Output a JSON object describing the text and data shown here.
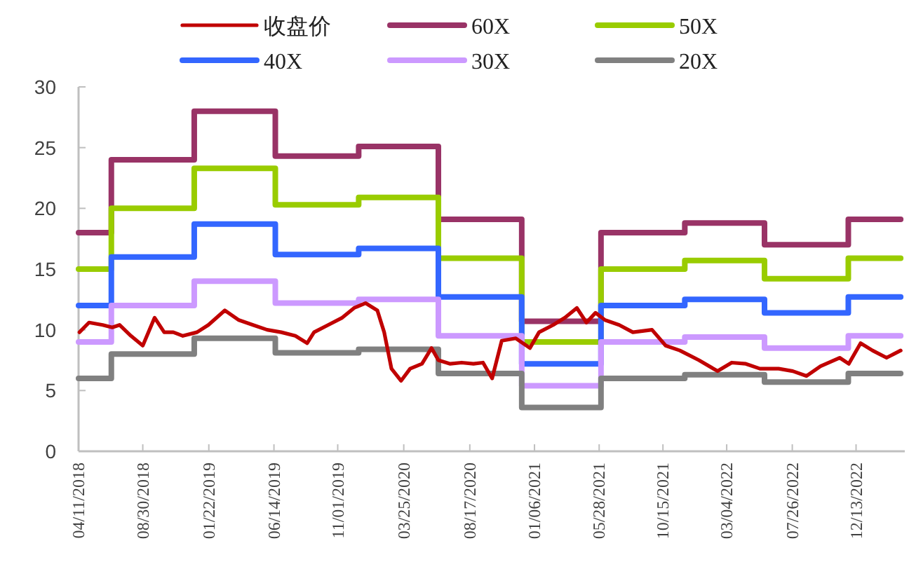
{
  "chart_data": {
    "type": "line",
    "legend": "top",
    "xlim": [
      "2018-04-11",
      "2023-03-30"
    ],
    "ylim": [
      0,
      30
    ],
    "yticks": [
      0,
      5,
      10,
      15,
      20,
      25,
      30
    ],
    "xticks": [
      {
        "value": "2018-04-11",
        "label": "04/11/2018"
      },
      {
        "value": "2018-08-30",
        "label": "08/30/2018"
      },
      {
        "value": "2019-01-22",
        "label": "01/22/2019"
      },
      {
        "value": "2019-06-14",
        "label": "06/14/2019"
      },
      {
        "value": "2019-11-01",
        "label": "11/01/2019"
      },
      {
        "value": "2020-03-25",
        "label": "03/25/2020"
      },
      {
        "value": "2020-08-17",
        "label": "08/17/2020"
      },
      {
        "value": "2021-01-06",
        "label": "01/06/2021"
      },
      {
        "value": "2021-05-28",
        "label": "05/28/2021"
      },
      {
        "value": "2021-10-15",
        "label": "10/15/2021"
      },
      {
        "value": "2022-03-04",
        "label": "03/04/2022"
      },
      {
        "value": "2022-07-26",
        "label": "07/26/2022"
      },
      {
        "value": "2022-12-13",
        "label": "12/13/2022"
      }
    ],
    "series": [
      {
        "name": "收盘价",
        "color": "#c00000",
        "x": [
          "2018-04-13",
          "2018-05-04",
          "2018-06-03",
          "2018-06-24",
          "2018-07-10",
          "2018-08-04",
          "2018-08-30",
          "2018-09-25",
          "2018-10-16",
          "2018-11-05",
          "2018-11-26",
          "2018-12-27",
          "2019-01-21",
          "2019-02-26",
          "2019-03-29",
          "2019-04-29",
          "2019-05-30",
          "2019-06-30",
          "2019-07-31",
          "2019-08-26",
          "2019-09-10",
          "2019-10-11",
          "2019-11-11",
          "2019-12-07",
          "2020-01-01",
          "2020-01-27",
          "2020-02-11",
          "2020-02-27",
          "2020-03-19",
          "2020-04-08",
          "2020-05-04",
          "2020-05-25",
          "2020-06-09",
          "2020-07-05",
          "2020-07-30",
          "2020-08-25",
          "2020-09-15",
          "2020-10-05",
          "2020-10-26",
          "2020-11-26",
          "2020-12-27",
          "2021-01-16",
          "2021-02-16",
          "2021-03-14",
          "2021-04-09",
          "2021-04-30",
          "2021-05-20",
          "2021-06-10",
          "2021-07-11",
          "2021-08-10",
          "2021-09-21",
          "2021-10-21",
          "2021-11-21",
          "2022-01-02",
          "2022-02-12",
          "2022-03-15",
          "2022-04-15",
          "2022-05-16",
          "2022-06-26",
          "2022-07-27",
          "2022-08-26",
          "2022-09-26",
          "2022-11-07",
          "2022-11-27",
          "2022-12-23",
          "2023-01-18",
          "2023-02-18",
          "2023-03-21"
        ],
        "values": [
          9.8,
          10.6,
          10.4,
          10.2,
          10.4,
          9.5,
          8.7,
          11.0,
          9.8,
          9.8,
          9.5,
          9.8,
          10.4,
          11.6,
          10.8,
          10.4,
          10.0,
          9.8,
          9.5,
          8.9,
          9.8,
          10.4,
          11.0,
          11.8,
          12.2,
          11.6,
          9.8,
          6.8,
          5.8,
          6.8,
          7.2,
          8.5,
          7.5,
          7.2,
          7.3,
          7.2,
          7.3,
          6.0,
          9.1,
          9.3,
          8.5,
          9.8,
          10.4,
          11.0,
          11.8,
          10.6,
          11.4,
          10.8,
          10.4,
          9.8,
          10.0,
          8.7,
          8.3,
          7.5,
          6.6,
          7.3,
          7.2,
          6.8,
          6.8,
          6.6,
          6.2,
          7.0,
          7.7,
          7.2,
          8.9,
          8.3,
          7.7,
          8.3
        ]
      },
      {
        "name": "60X",
        "type": "step",
        "color": "#993366",
        "x": [
          "2018-04-11",
          "2018-06-22",
          "2018-12-21",
          "2019-06-17",
          "2019-12-17",
          "2020-06-09",
          "2020-12-09",
          "2021-06-01",
          "2021-12-02",
          "2022-05-26",
          "2022-11-26",
          "2023-03-21"
        ],
        "values": [
          18,
          24,
          28,
          24.3,
          25.1,
          19.1,
          10.7,
          18,
          18.8,
          17.0,
          19.1,
          19.1
        ]
      },
      {
        "name": "50X",
        "type": "step",
        "color": "#99cc00",
        "x": [
          "2018-04-11",
          "2018-06-22",
          "2018-12-21",
          "2019-06-17",
          "2019-12-17",
          "2020-06-09",
          "2020-12-09",
          "2021-06-01",
          "2021-12-02",
          "2022-05-26",
          "2022-11-26",
          "2023-03-21"
        ],
        "values": [
          15,
          20,
          23.3,
          20.3,
          20.9,
          15.9,
          9.0,
          15,
          15.7,
          14.2,
          15.9,
          15.9
        ]
      },
      {
        "name": "40X",
        "type": "step",
        "color": "#3366ff",
        "x": [
          "2018-04-11",
          "2018-06-22",
          "2018-12-21",
          "2019-06-17",
          "2019-12-17",
          "2020-06-09",
          "2020-12-09",
          "2021-06-01",
          "2021-12-02",
          "2022-05-26",
          "2022-11-26",
          "2023-03-21"
        ],
        "values": [
          12,
          16,
          18.7,
          16.2,
          16.7,
          12.7,
          7.2,
          12,
          12.5,
          11.4,
          12.7,
          12.7
        ]
      },
      {
        "name": "30X",
        "type": "step",
        "color": "#cc99ff",
        "x": [
          "2018-04-11",
          "2018-06-22",
          "2018-12-21",
          "2019-06-17",
          "2019-12-17",
          "2020-06-09",
          "2020-12-09",
          "2021-06-01",
          "2021-12-02",
          "2022-05-26",
          "2022-11-26",
          "2023-03-21"
        ],
        "values": [
          9,
          12,
          14,
          12.2,
          12.5,
          9.5,
          5.4,
          9,
          9.4,
          8.5,
          9.5,
          9.5
        ]
      },
      {
        "name": "20X",
        "type": "step",
        "color": "#808080",
        "x": [
          "2018-04-11",
          "2018-06-22",
          "2018-12-21",
          "2019-06-17",
          "2019-12-17",
          "2020-06-09",
          "2020-12-09",
          "2021-06-01",
          "2021-12-02",
          "2022-05-26",
          "2022-11-26",
          "2023-03-21"
        ],
        "values": [
          6,
          8,
          9.3,
          8.1,
          8.4,
          6.4,
          3.6,
          6,
          6.3,
          5.7,
          6.4,
          6.4
        ]
      }
    ]
  }
}
